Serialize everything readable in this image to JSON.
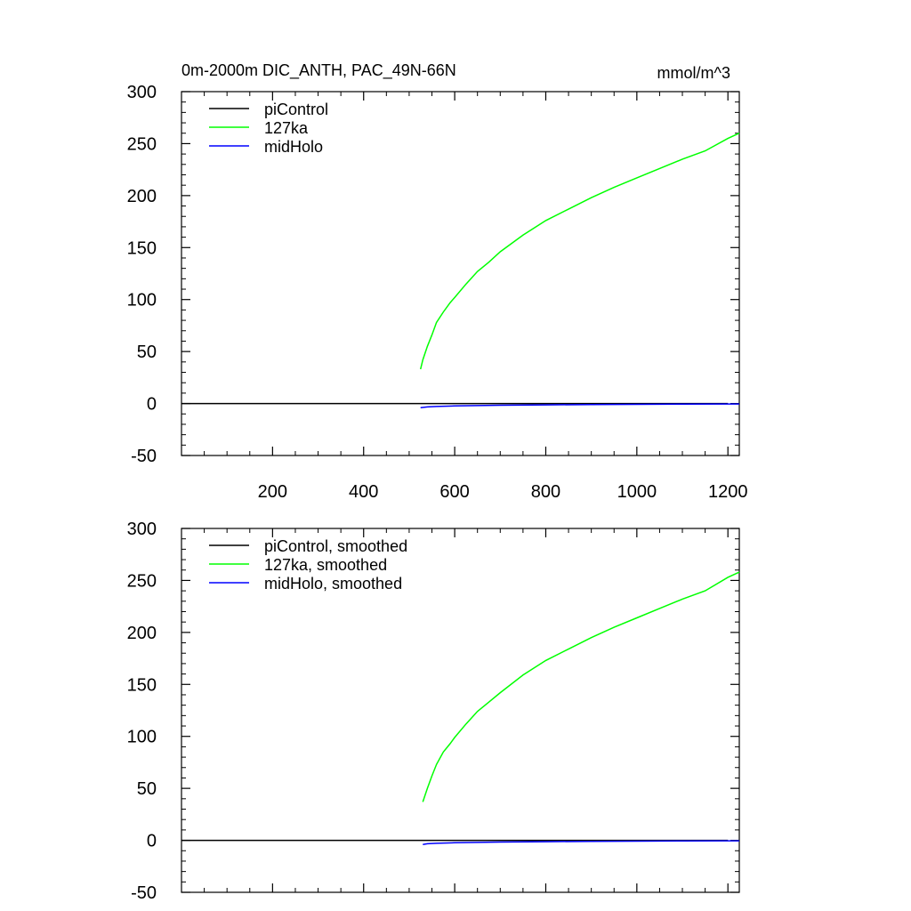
{
  "chart_data": [
    {
      "type": "line",
      "title": "0m-2000m DIC_ANTH, PAC_49N-66N",
      "units": "mmol/m^3",
      "xlim": [
        0,
        1225
      ],
      "ylim": [
        -50,
        300
      ],
      "xticks": [
        200,
        400,
        600,
        800,
        1000,
        1200
      ],
      "yticks": [
        -50,
        0,
        50,
        100,
        150,
        200,
        250,
        300
      ],
      "show_xtick_labels": true,
      "legend": "top-left",
      "grid": false,
      "series": [
        {
          "name": "piControl",
          "color": "#000000",
          "x": [
            0,
            100,
            200,
            300,
            400,
            500,
            600,
            700,
            800,
            900,
            1000,
            1100,
            1200
          ],
          "y": [
            0,
            0,
            0,
            0,
            0,
            0,
            0,
            0,
            0,
            0,
            0,
            0,
            0
          ]
        },
        {
          "name": "127ka",
          "color": "#00ff00",
          "x": [
            525,
            530,
            540,
            550,
            560,
            575,
            590,
            600,
            625,
            650,
            675,
            700,
            750,
            800,
            850,
            900,
            950,
            1000,
            1050,
            1100,
            1150,
            1200,
            1225
          ],
          "y": [
            33,
            42,
            55,
            66,
            78,
            88,
            97,
            102,
            115,
            127,
            136,
            146,
            162,
            176,
            187,
            198,
            208,
            217,
            226,
            235,
            243,
            255,
            260
          ]
        },
        {
          "name": "midHolo",
          "color": "#0000ff",
          "x": [
            525,
            540,
            560,
            600,
            700,
            800,
            900,
            1000,
            1100,
            1200,
            1225
          ],
          "y": [
            -4,
            -3.3,
            -2.8,
            -2.3,
            -1.7,
            -1.3,
            -1.0,
            -0.8,
            -0.6,
            -0.5,
            -0.5
          ]
        }
      ]
    },
    {
      "type": "line",
      "xlim": [
        0,
        1225
      ],
      "ylim": [
        -50,
        300
      ],
      "xticks": [
        200,
        400,
        600,
        800,
        1000,
        1200
      ],
      "yticks": [
        -50,
        0,
        50,
        100,
        150,
        200,
        250,
        300
      ],
      "show_xtick_labels": false,
      "legend": "top-left",
      "grid": false,
      "series": [
        {
          "name": "piControl, smoothed",
          "color": "#000000",
          "x": [
            0,
            100,
            200,
            300,
            400,
            500,
            600,
            700,
            800,
            900,
            1000,
            1100,
            1200
          ],
          "y": [
            0,
            0,
            0,
            0,
            0,
            0,
            0,
            0,
            0,
            0,
            0,
            0,
            0
          ]
        },
        {
          "name": "127ka, smoothed",
          "color": "#00ff00",
          "x": [
            530,
            540,
            550,
            560,
            575,
            590,
            600,
            625,
            650,
            675,
            700,
            750,
            800,
            850,
            900,
            950,
            1000,
            1050,
            1100,
            1150,
            1200,
            1225
          ],
          "y": [
            37,
            50,
            62,
            73,
            85,
            93,
            99,
            112,
            124,
            133,
            142,
            159,
            173,
            184,
            195,
            205,
            214,
            223,
            232,
            240,
            253,
            258
          ]
        },
        {
          "name": "midHolo, smoothed",
          "color": "#0000ff",
          "x": [
            530,
            540,
            560,
            600,
            700,
            800,
            900,
            1000,
            1100,
            1200,
            1225
          ],
          "y": [
            -4,
            -3.3,
            -2.8,
            -2.3,
            -1.7,
            -1.3,
            -1.0,
            -0.8,
            -0.6,
            -0.5,
            -0.5
          ]
        }
      ]
    }
  ]
}
